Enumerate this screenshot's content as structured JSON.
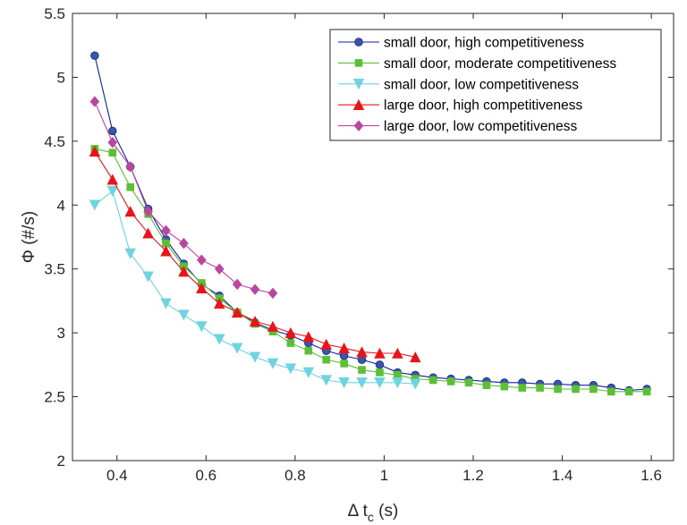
{
  "chart_data": {
    "type": "line",
    "title": "",
    "xlabel": {
      "prefix": "Δ t",
      "subscript": "c",
      "suffix": " (s)"
    },
    "ylabel": "Φ (#/s)",
    "xlim": [
      0.3,
      1.65
    ],
    "ylim": [
      2,
      5.5
    ],
    "xticks": [
      "0.4",
      "0.6",
      "0.8",
      "1",
      "1.2",
      "1.4",
      "1.6"
    ],
    "yticks": [
      "2",
      "2.5",
      "3",
      "3.5",
      "4",
      "4.5",
      "5",
      "5.5"
    ],
    "grid": false,
    "legend_position": "top-right",
    "series": [
      {
        "name": "small door, high competitiveness",
        "color": "#0b21a6",
        "marker_color": "#3a57a6",
        "marker": "circle",
        "x": [
          0.35,
          0.39,
          0.43,
          0.47,
          0.51,
          0.55,
          0.59,
          0.63,
          0.67,
          0.71,
          0.75,
          0.79,
          0.83,
          0.87,
          0.91,
          0.95,
          0.99,
          1.03,
          1.07,
          1.11,
          1.15,
          1.19,
          1.23,
          1.27,
          1.31,
          1.35,
          1.39,
          1.43,
          1.47,
          1.51,
          1.55,
          1.59
        ],
        "y": [
          5.17,
          4.58,
          4.3,
          3.97,
          3.73,
          3.54,
          3.38,
          3.29,
          3.16,
          3.08,
          3.02,
          2.98,
          2.92,
          2.86,
          2.82,
          2.79,
          2.75,
          2.69,
          2.67,
          2.65,
          2.64,
          2.63,
          2.62,
          2.61,
          2.61,
          2.6,
          2.6,
          2.59,
          2.59,
          2.57,
          2.55,
          2.56
        ]
      },
      {
        "name": "small door, moderate competitiveness",
        "color": "#5cbf35",
        "marker_color": "#5cbf35",
        "marker": "square",
        "x": [
          0.35,
          0.39,
          0.43,
          0.47,
          0.51,
          0.55,
          0.59,
          0.63,
          0.67,
          0.71,
          0.75,
          0.79,
          0.83,
          0.87,
          0.91,
          0.95,
          0.99,
          1.03,
          1.07,
          1.11,
          1.15,
          1.19,
          1.23,
          1.27,
          1.31,
          1.35,
          1.39,
          1.43,
          1.47,
          1.51,
          1.55,
          1.59
        ],
        "y": [
          4.44,
          4.41,
          4.14,
          3.93,
          3.7,
          3.52,
          3.39,
          3.27,
          3.16,
          3.07,
          3.01,
          2.92,
          2.86,
          2.79,
          2.76,
          2.71,
          2.69,
          2.67,
          2.64,
          2.63,
          2.62,
          2.61,
          2.59,
          2.58,
          2.57,
          2.57,
          2.56,
          2.56,
          2.56,
          2.54,
          2.54,
          2.54
        ]
      },
      {
        "name": "small door, low competitiveness",
        "color": "#6fd3e0",
        "marker_color": "#6fd3e0",
        "marker": "triangle-down",
        "x": [
          0.35,
          0.39,
          0.43,
          0.47,
          0.51,
          0.55,
          0.59,
          0.63,
          0.67,
          0.71,
          0.75,
          0.79,
          0.83,
          0.87,
          0.91,
          0.95,
          0.99,
          1.03,
          1.07
        ],
        "y": [
          4.0,
          4.11,
          3.62,
          3.44,
          3.23,
          3.14,
          3.05,
          2.95,
          2.88,
          2.81,
          2.76,
          2.72,
          2.69,
          2.63,
          2.61,
          2.61,
          2.61,
          2.61,
          2.6
        ]
      },
      {
        "name": "large door, high competitiveness",
        "color": "#e8141a",
        "marker_color": "#e8141a",
        "marker": "triangle-up",
        "x": [
          0.35,
          0.39,
          0.43,
          0.47,
          0.51,
          0.55,
          0.59,
          0.63,
          0.67,
          0.71,
          0.75,
          0.79,
          0.83,
          0.87,
          0.91,
          0.95,
          0.99,
          1.03,
          1.07
        ],
        "y": [
          4.42,
          4.2,
          3.95,
          3.78,
          3.64,
          3.48,
          3.35,
          3.23,
          3.16,
          3.09,
          3.05,
          3.0,
          2.97,
          2.91,
          2.88,
          2.85,
          2.84,
          2.84,
          2.81
        ]
      },
      {
        "name": "large door, low competitiveness",
        "color": "#c044a8",
        "marker_color": "#b9479e",
        "marker": "diamond",
        "x": [
          0.35,
          0.39,
          0.43,
          0.47,
          0.51,
          0.55,
          0.59,
          0.63,
          0.67,
          0.71,
          0.75
        ],
        "y": [
          4.81,
          4.49,
          4.3,
          3.95,
          3.8,
          3.7,
          3.57,
          3.5,
          3.38,
          3.34,
          3.31
        ]
      }
    ]
  }
}
